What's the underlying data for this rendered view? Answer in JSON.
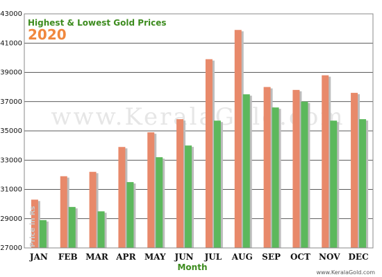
{
  "chart_data": {
    "type": "bar",
    "title": "Highest & Lowest Gold Prices",
    "subtitle": "2020",
    "xlabel": "Month",
    "ylabel": "Price in Rs",
    "categories": [
      "JAN",
      "FEB",
      "MAR",
      "APR",
      "MAY",
      "JUN",
      "JUL",
      "AUG",
      "SEP",
      "OCT",
      "NOV",
      "DEC"
    ],
    "series": [
      {
        "values": [
          30300,
          31900,
          32200,
          33900,
          34900,
          35800,
          39900,
          41900,
          38000,
          37800,
          38800,
          37600
        ]
      },
      {
        "values": [
          28900,
          29800,
          29500,
          31500,
          33200,
          34000,
          35700,
          37500,
          36600,
          37000,
          35700,
          35800
        ]
      }
    ],
    "ylim": [
      27000,
      43000
    ],
    "yticks": [
      27000,
      29000,
      31000,
      33000,
      35000,
      37000,
      39000,
      41000,
      43000
    ],
    "grid": true,
    "legend": "none",
    "colors": {
      "high": "#e8896a",
      "low": "#5cb85c",
      "title": "#3d8c1f",
      "year": "#f0883e",
      "xlabel": "#3d8c1f"
    }
  },
  "watermark": "www.KeralaGold.com",
  "credit": "www.KeralaGold.com"
}
